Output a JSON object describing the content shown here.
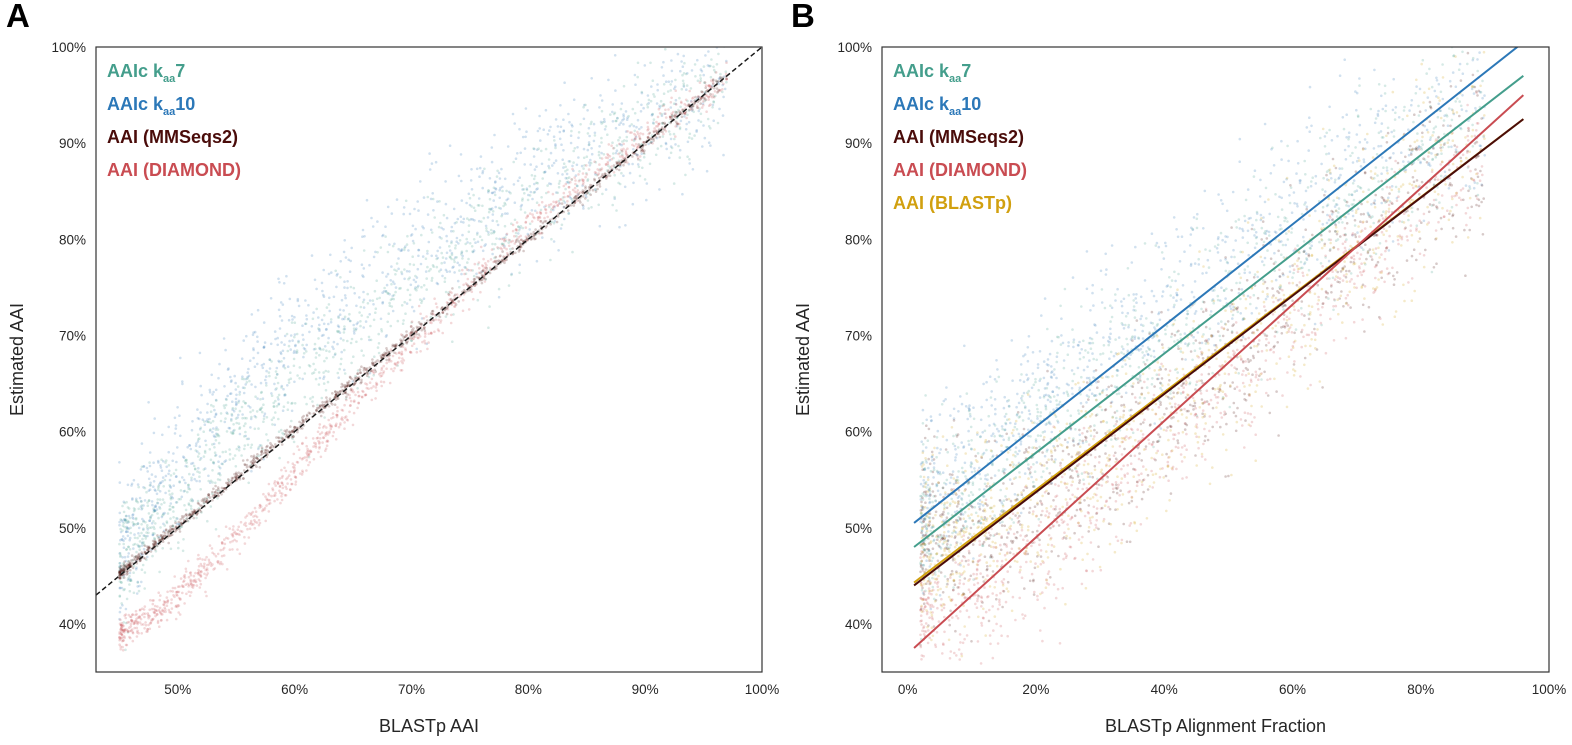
{
  "colors": {
    "aaic7": "#449e8c",
    "aaic10": "#2c78b8",
    "mmseqs2": "#4a0c0a",
    "diamond": "#c94c52",
    "blastp": "#d1a00f",
    "axis": "#333333"
  },
  "chart_data": [
    {
      "panel_label": "A",
      "type": "scatter",
      "xlabel": "BLASTp AAI",
      "ylabel": "Estimated AAI",
      "xlim": [
        43,
        100
      ],
      "ylim": [
        35,
        100
      ],
      "xticks": [
        50,
        60,
        70,
        80,
        90,
        100
      ],
      "yticks": [
        40,
        50,
        60,
        70,
        80,
        90,
        100
      ],
      "xtick_labels": [
        "50%",
        "60%",
        "70%",
        "80%",
        "90%",
        "100%"
      ],
      "ytick_labels": [
        "40%",
        "50%",
        "60%",
        "70%",
        "80%",
        "90%",
        "100%"
      ],
      "grid": false,
      "legend_position": "top-left",
      "identity_line": {
        "style": "dashed",
        "from": [
          43,
          43
        ],
        "to": [
          100,
          100
        ]
      },
      "legend": [
        {
          "key": "aaic7",
          "prefix": "AAIc k",
          "sub": "aa",
          "suffix": "7"
        },
        {
          "key": "aaic10",
          "prefix": "AAIc k",
          "sub": "aa",
          "suffix": "10"
        },
        {
          "key": "mmseqs2",
          "prefix": "AAI (MMSeqs2)",
          "sub": "",
          "suffix": ""
        },
        {
          "key": "diamond",
          "prefix": "AAI (DIAMOND)",
          "sub": "",
          "suffix": ""
        }
      ],
      "series": [
        {
          "name": "AAIc kaa 10",
          "key": "aaic10",
          "x": [
            45,
            48,
            50,
            55,
            60,
            65,
            70,
            75,
            80,
            85,
            90,
            95,
            97
          ],
          "y": [
            47,
            53,
            56,
            63,
            69,
            74,
            78.5,
            82.5,
            86,
            89,
            92,
            95,
            96.5
          ],
          "spread": 3.6
        },
        {
          "name": "AAIc kaa 7",
          "key": "aaic7",
          "x": [
            45,
            48,
            50,
            55,
            60,
            65,
            70,
            75,
            80,
            85,
            90,
            95,
            97
          ],
          "y": [
            46.5,
            51,
            53,
            59.5,
            65,
            70.5,
            75,
            79.5,
            83.5,
            87.5,
            91,
            94.5,
            96
          ],
          "spread": 3.0
        },
        {
          "name": "AAI (DIAMOND)",
          "key": "diamond",
          "x": [
            45,
            48,
            50,
            55,
            60,
            65,
            70,
            75,
            80,
            85,
            90,
            95,
            97
          ],
          "y": [
            39,
            41,
            43,
            49,
            56,
            63,
            69,
            75.5,
            81.5,
            86.5,
            91,
            95,
            96.5
          ],
          "spread": 0.9
        },
        {
          "name": "AAI (MMSeqs2)",
          "key": "mmseqs2",
          "x": [
            45,
            50,
            60,
            70,
            80,
            90,
            97
          ],
          "y": [
            45.2,
            50.3,
            60.2,
            70.1,
            80,
            90,
            97
          ],
          "spread": 0.35
        }
      ]
    },
    {
      "panel_label": "B",
      "type": "scatter",
      "xlabel": "BLASTp Alignment Fraction",
      "ylabel": "Estimated AAI",
      "xlim": [
        -4,
        100
      ],
      "ylim": [
        35,
        100
      ],
      "xticks": [
        0,
        20,
        40,
        60,
        80,
        100
      ],
      "yticks": [
        40,
        50,
        60,
        70,
        80,
        90,
        100
      ],
      "xtick_labels": [
        "0%",
        "20%",
        "40%",
        "60%",
        "80%",
        "100%"
      ],
      "ytick_labels": [
        "40%",
        "50%",
        "60%",
        "70%",
        "80%",
        "90%",
        "100%"
      ],
      "grid": false,
      "legend_position": "top-left",
      "legend": [
        {
          "key": "aaic7",
          "prefix": "AAIc k",
          "sub": "aa",
          "suffix": "7"
        },
        {
          "key": "aaic10",
          "prefix": "AAIc k",
          "sub": "aa",
          "suffix": "10"
        },
        {
          "key": "mmseqs2",
          "prefix": "AAI (MMSeqs2)",
          "sub": "",
          "suffix": ""
        },
        {
          "key": "diamond",
          "prefix": "AAI (DIAMOND)",
          "sub": "",
          "suffix": ""
        },
        {
          "key": "blastp",
          "prefix": "AAI (BLASTp)",
          "sub": "",
          "suffix": ""
        }
      ],
      "fit_lines": [
        {
          "key": "aaic10",
          "x": [
            1,
            96
          ],
          "y": [
            50.5,
            100.5
          ]
        },
        {
          "key": "aaic7",
          "x": [
            1,
            96
          ],
          "y": [
            48,
            97
          ]
        },
        {
          "key": "blastp",
          "x": [
            1,
            96
          ],
          "y": [
            44.3,
            92.5
          ]
        },
        {
          "key": "mmseqs2",
          "x": [
            1,
            96
          ],
          "y": [
            44,
            92.5
          ]
        },
        {
          "key": "diamond",
          "x": [
            1,
            96
          ],
          "y": [
            37.5,
            95
          ]
        }
      ],
      "series": [
        {
          "name": "AAIc kaa 10",
          "key": "aaic10",
          "x": [
            2,
            5,
            10,
            15,
            20,
            30,
            40,
            50,
            60,
            70,
            80,
            90
          ],
          "y": [
            52,
            54,
            57,
            60,
            63,
            68,
            73,
            78,
            83,
            87,
            91,
            94
          ],
          "spread": 4.5
        },
        {
          "name": "AAIc kaa 7",
          "key": "aaic7",
          "x": [
            2,
            5,
            10,
            15,
            20,
            30,
            40,
            50,
            60,
            70,
            80,
            90
          ],
          "y": [
            50,
            51.5,
            54,
            57,
            60,
            65,
            70,
            75,
            80,
            85,
            89,
            93
          ],
          "spread": 4.5
        },
        {
          "name": "AAI (DIAMOND)",
          "key": "diamond",
          "x": [
            2,
            5,
            10,
            15,
            20,
            30,
            40,
            50,
            60,
            70,
            80,
            90
          ],
          "y": [
            41,
            42,
            43,
            45,
            48,
            53,
            59,
            65,
            72,
            78,
            84,
            89
          ],
          "spread": 3.5
        },
        {
          "name": "AAI (MMSeqs2)",
          "key": "mmseqs2",
          "x": [
            2,
            5,
            10,
            15,
            20,
            30,
            40,
            50,
            60,
            70,
            80,
            90
          ],
          "y": [
            48,
            48.5,
            49.5,
            51,
            53,
            57,
            62,
            68,
            74,
            80,
            86,
            90
          ],
          "spread": 4.5
        },
        {
          "name": "AAI (BLASTp)",
          "key": "blastp",
          "x": [
            2,
            5,
            10,
            15,
            20,
            30,
            40,
            50,
            60,
            70,
            80,
            90
          ],
          "y": [
            48,
            48.5,
            49.5,
            51,
            53,
            57,
            62,
            68,
            74,
            80,
            86,
            90
          ],
          "spread": 5
        }
      ]
    }
  ]
}
